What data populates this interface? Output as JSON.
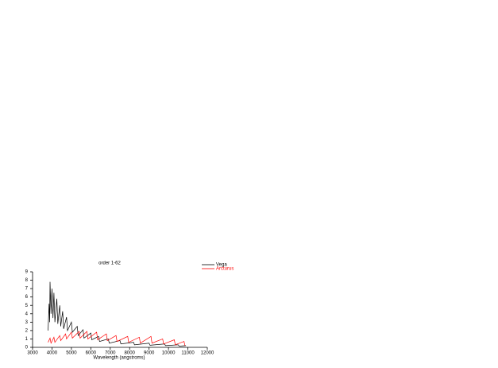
{
  "chart_data": {
    "type": "line",
    "title": "order 1-62",
    "x_label": "Wavelength (angstroms)",
    "xlim": [
      3000,
      12000
    ],
    "xticks": [
      3000,
      4000,
      5000,
      6000,
      7000,
      8000,
      9000,
      10000,
      11000,
      12000
    ],
    "ylim": [
      0,
      9
    ],
    "yticks": [
      0,
      1,
      2,
      3,
      4,
      5,
      6,
      7,
      8,
      9
    ],
    "series": [
      {
        "name": "Vega",
        "color": "#000000",
        "x": [
          3800,
          3850,
          3880,
          3900,
          3950,
          4000,
          4050,
          4100,
          4150,
          4250,
          4300,
          4400,
          4450,
          4550,
          4600,
          4750,
          4800,
          5000,
          5050,
          5300,
          5350,
          5600,
          5650,
          6000,
          6050,
          6400,
          6450,
          6900,
          6950,
          7500,
          7550,
          8200,
          8250,
          9000,
          9050,
          9800,
          9850,
          10500,
          10550,
          10900
        ],
        "values": [
          2,
          5.2,
          3,
          7.8,
          4,
          7,
          3.5,
          6.5,
          3,
          5.8,
          2.8,
          5,
          2.5,
          4.3,
          2.2,
          3.6,
          2,
          3,
          1.8,
          2.5,
          1.4,
          2.1,
          1.1,
          1.7,
          0.9,
          1.3,
          0.7,
          1.0,
          0.5,
          0.8,
          0.4,
          0.6,
          0.3,
          0.5,
          0.25,
          0.4,
          0.2,
          0.3,
          0.15,
          0.2
        ]
      },
      {
        "name": "Arcturus",
        "color": "#ff0000",
        "x": [
          3800,
          3900,
          3950,
          4100,
          4150,
          4400,
          4450,
          4700,
          4750,
          5000,
          5050,
          5400,
          5450,
          5800,
          5850,
          6300,
          6350,
          6800,
          6850,
          7300,
          7350,
          7900,
          7950,
          8500,
          8550,
          9100,
          9150,
          9700,
          9750,
          10300,
          10350,
          10800,
          10850
        ],
        "values": [
          0.6,
          1.1,
          0.5,
          1.2,
          0.6,
          1.4,
          0.8,
          1.6,
          1.0,
          1.8,
          1.1,
          1.9,
          1.1,
          1.9,
          1.0,
          1.8,
          0.9,
          1.6,
          0.8,
          1.4,
          0.7,
          1.3,
          0.6,
          1.2,
          0.5,
          1.3,
          0.5,
          1.0,
          0.4,
          0.9,
          0.3,
          0.7,
          0.2
        ]
      }
    ]
  }
}
